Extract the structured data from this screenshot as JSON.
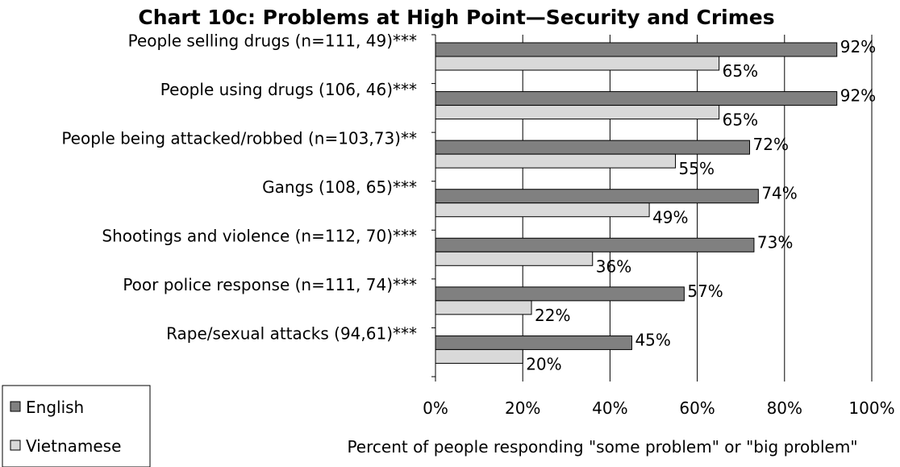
{
  "chart_data": {
    "type": "bar",
    "orientation": "horizontal",
    "title": "Chart 10c: Problems at High Point—Security and Crimes",
    "xlabel": "Percent of people responding \"some problem\" or \"big problem\"",
    "ylabel": "",
    "xlim": [
      0,
      100
    ],
    "x_ticks": [
      "0%",
      "20%",
      "40%",
      "60%",
      "80%",
      "100%"
    ],
    "grid": "vertical",
    "legend_position": "bottom-left",
    "categories": [
      "People selling drugs (n=111, 49)***",
      "People using drugs (106, 46)***",
      "People being attacked/robbed (n=103,73)**",
      "Gangs (108, 65)***",
      "Shootings and violence (n=112, 70)***",
      "Poor police response (n=111, 74)***",
      "Rape/sexual attacks (94,61)***"
    ],
    "series": [
      {
        "name": "English",
        "color": "#808080",
        "values": [
          92,
          92,
          72,
          74,
          73,
          57,
          45
        ],
        "labels": [
          "92%",
          "92%",
          "72%",
          "74%",
          "73%",
          "57%",
          "45%"
        ]
      },
      {
        "name": "Vietnamese",
        "color": "#D9D9D9",
        "values": [
          65,
          65,
          55,
          49,
          36,
          22,
          20
        ],
        "labels": [
          "65%",
          "65%",
          "55%",
          "49%",
          "36%",
          "22%",
          "20%"
        ]
      }
    ]
  }
}
